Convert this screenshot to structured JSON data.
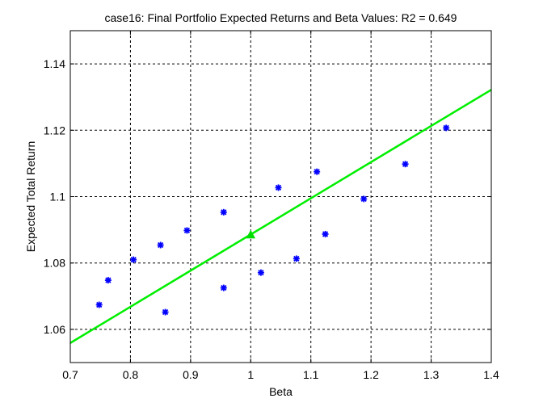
{
  "chart_data": {
    "type": "scatter",
    "title": "case16: Final Portfolio Expected Returns and Beta Values: R2 = 0.649",
    "xlabel": "Beta",
    "ylabel": "Expected Total Return",
    "xlim": [
      0.7,
      1.4
    ],
    "ylim": [
      1.05,
      1.15
    ],
    "xticks": [
      0.7,
      0.8,
      0.9,
      1.0,
      1.1,
      1.2,
      1.3,
      1.4
    ],
    "xtick_labels": [
      "0.7",
      "0.8",
      "0.9",
      "1",
      "1.1",
      "1.2",
      "1.3",
      "1.4"
    ],
    "yticks": [
      1.06,
      1.08,
      1.1,
      1.12,
      1.14
    ],
    "ytick_labels": [
      "1.06",
      "1.08",
      "1.1",
      "1.12",
      "1.14"
    ],
    "grid": true,
    "series": [
      {
        "marker": "asterisk",
        "color": "#0000ff",
        "points": [
          {
            "x": 0.748,
            "y": 1.0674
          },
          {
            "x": 0.763,
            "y": 1.0748
          },
          {
            "x": 0.805,
            "y": 1.081
          },
          {
            "x": 0.85,
            "y": 1.0854
          },
          {
            "x": 0.858,
            "y": 1.0652
          },
          {
            "x": 0.894,
            "y": 1.0898
          },
          {
            "x": 0.955,
            "y": 1.0953
          },
          {
            "x": 0.955,
            "y": 1.0725
          },
          {
            "x": 1.017,
            "y": 1.0771
          },
          {
            "x": 1.046,
            "y": 1.1027
          },
          {
            "x": 1.076,
            "y": 1.0813
          },
          {
            "x": 1.11,
            "y": 1.1075
          },
          {
            "x": 1.124,
            "y": 1.0887
          },
          {
            "x": 1.188,
            "y": 1.0993
          },
          {
            "x": 1.257,
            "y": 1.1098
          },
          {
            "x": 1.325,
            "y": 1.1207
          }
        ]
      },
      {
        "marker": "triangle",
        "color": "#00dd00",
        "points": [
          {
            "x": 1.0,
            "y": 1.0885
          }
        ]
      }
    ],
    "fit_line": {
      "color": "#00ee00",
      "x": [
        0.7,
        1.4
      ],
      "y": [
        1.0559,
        1.1322
      ]
    }
  }
}
